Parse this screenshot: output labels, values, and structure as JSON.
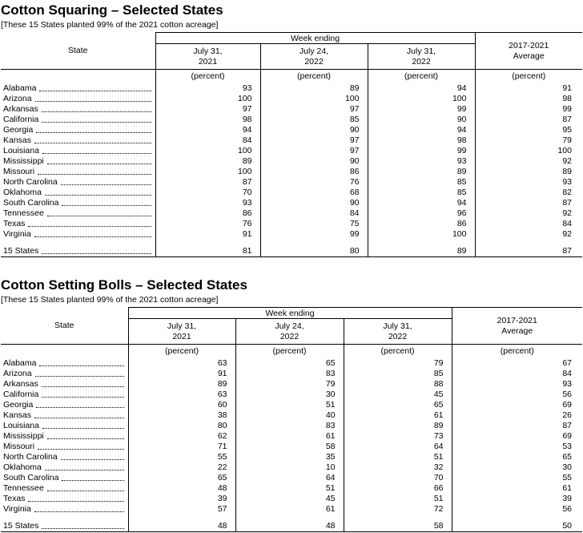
{
  "page": {
    "sections": [
      {
        "title": "Cotton Squaring – Selected States",
        "note": "[These 15 States planted 99% of the 2021 cotton acreage]",
        "header": {
          "state_col": "State",
          "week_ending": "Week ending",
          "dates": [
            "July 31,\n2021",
            "July 24,\n2022",
            "July 31,\n2022"
          ],
          "average": "2017-2021\nAverage",
          "unit": "(percent)"
        },
        "rows": [
          {
            "state": "Alabama",
            "values": [
              "93",
              "89",
              "94",
              "91"
            ]
          },
          {
            "state": "Arizona",
            "values": [
              "100",
              "100",
              "100",
              "98"
            ]
          },
          {
            "state": "Arkansas",
            "values": [
              "97",
              "97",
              "99",
              "99"
            ]
          },
          {
            "state": "California",
            "values": [
              "98",
              "85",
              "90",
              "87"
            ]
          },
          {
            "state": "Georgia",
            "values": [
              "94",
              "90",
              "94",
              "95"
            ]
          },
          {
            "state": "Kansas",
            "values": [
              "84",
              "97",
              "98",
              "79"
            ]
          },
          {
            "state": "Louisiana",
            "values": [
              "100",
              "97",
              "99",
              "100"
            ]
          },
          {
            "state": "Mississippi",
            "values": [
              "89",
              "90",
              "93",
              "92"
            ]
          },
          {
            "state": "Missouri",
            "values": [
              "100",
              "86",
              "89",
              "89"
            ]
          },
          {
            "state": "North Carolina",
            "values": [
              "87",
              "76",
              "85",
              "93"
            ]
          },
          {
            "state": "Oklahoma",
            "values": [
              "70",
              "68",
              "85",
              "82"
            ]
          },
          {
            "state": "South Carolina",
            "values": [
              "93",
              "90",
              "94",
              "87"
            ]
          },
          {
            "state": "Tennessee",
            "values": [
              "86",
              "84",
              "96",
              "92"
            ]
          },
          {
            "state": "Texas",
            "values": [
              "76",
              "75",
              "86",
              "84"
            ]
          },
          {
            "state": "Virginia",
            "values": [
              "91",
              "99",
              "100",
              "92"
            ]
          }
        ],
        "total_row": {
          "state": "15 States",
          "values": [
            "81",
            "80",
            "89",
            "87"
          ]
        }
      },
      {
        "title": "Cotton Setting Bolls – Selected States",
        "note": "[These 15 States planted 99% of the 2021 cotton acreage]",
        "header": {
          "state_col": "State",
          "week_ending": "Week ending",
          "dates": [
            "July 31,\n2021",
            "July 24,\n2022",
            "July 31,\n2022"
          ],
          "average": "2017-2021\nAverage",
          "unit": "(percent)"
        },
        "rows": [
          {
            "state": "Alabama",
            "values": [
              "63",
              "65",
              "79",
              "67"
            ]
          },
          {
            "state": "Arizona",
            "values": [
              "91",
              "83",
              "85",
              "84"
            ]
          },
          {
            "state": "Arkansas",
            "values": [
              "89",
              "79",
              "88",
              "93"
            ]
          },
          {
            "state": "California",
            "values": [
              "63",
              "30",
              "45",
              "56"
            ]
          },
          {
            "state": "Georgia",
            "values": [
              "60",
              "51",
              "65",
              "69"
            ]
          },
          {
            "state": "Kansas",
            "values": [
              "38",
              "40",
              "61",
              "26"
            ]
          },
          {
            "state": "Louisiana",
            "values": [
              "80",
              "83",
              "89",
              "87"
            ]
          },
          {
            "state": "Mississippi",
            "values": [
              "62",
              "61",
              "73",
              "69"
            ]
          },
          {
            "state": "Missouri",
            "values": [
              "71",
              "58",
              "64",
              "53"
            ]
          },
          {
            "state": "North Carolina",
            "values": [
              "55",
              "35",
              "51",
              "65"
            ]
          },
          {
            "state": "Oklahoma",
            "values": [
              "22",
              "10",
              "32",
              "30"
            ]
          },
          {
            "state": "South Carolina",
            "values": [
              "65",
              "64",
              "70",
              "55"
            ]
          },
          {
            "state": "Tennessee",
            "values": [
              "48",
              "51",
              "66",
              "61"
            ]
          },
          {
            "state": "Texas",
            "values": [
              "39",
              "45",
              "51",
              "39"
            ]
          },
          {
            "state": "Virginia",
            "values": [
              "57",
              "61",
              "72",
              "56"
            ]
          }
        ],
        "total_row": {
          "state": "15 States",
          "values": [
            "48",
            "48",
            "58",
            "50"
          ]
        }
      }
    ]
  }
}
